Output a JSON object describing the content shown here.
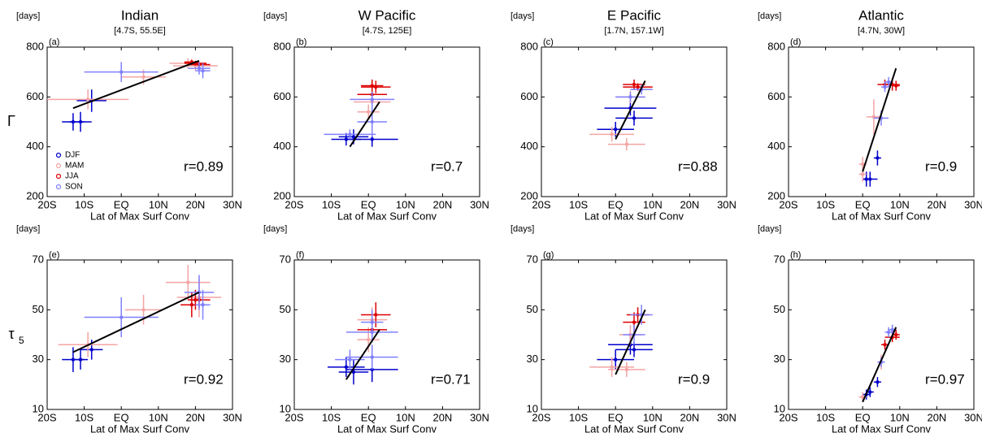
{
  "chart_data": [
    {
      "type": "scatter",
      "title": "Indian",
      "subtitle": "[4.7S, 55.5E]",
      "panel_label": "(a)",
      "y_units": "[days]",
      "ylabel": "Γ",
      "xlabel": "Lat of Max Surf Conv",
      "annotation": "r=0.89",
      "legend": "lower left",
      "xlim": [
        -20,
        30
      ],
      "xticks": [
        {
          "value": -20,
          "label": "20S"
        },
        {
          "value": -10,
          "label": "10S"
        },
        {
          "value": 0,
          "label": "EQ"
        },
        {
          "value": 10,
          "label": "10N"
        },
        {
          "value": 20,
          "label": "20N"
        },
        {
          "value": 30,
          "label": "30N"
        }
      ],
      "ylim": [
        200,
        800
      ],
      "yticks": [
        200,
        400,
        600,
        800
      ],
      "series": [
        {
          "name": "DJF",
          "color": "#0000cc",
          "x": [
            -13,
            -11,
            -8
          ],
          "values": [
            500,
            500,
            585
          ],
          "x_err": [
            3,
            3,
            4
          ],
          "y_err": [
            35,
            40,
            45
          ]
        },
        {
          "name": "MAM",
          "color": "#f4a4a4",
          "x": [
            -9,
            6,
            18,
            20
          ],
          "values": [
            590,
            680,
            735,
            725
          ],
          "x_err": [
            11,
            6,
            5,
            6
          ],
          "y_err": [
            40,
            30,
            20,
            20
          ]
        },
        {
          "name": "JJA",
          "color": "#dd0000",
          "x": [
            19,
            20,
            21
          ],
          "values": [
            740,
            735,
            730
          ],
          "x_err": [
            2,
            3,
            3
          ],
          "y_err": [
            10,
            10,
            10
          ]
        },
        {
          "name": "SON",
          "color": "#8080ff",
          "x": [
            0,
            21,
            22
          ],
          "values": [
            700,
            715,
            705
          ],
          "x_err": [
            10,
            3,
            2
          ],
          "y_err": [
            40,
            25,
            30
          ]
        }
      ],
      "fit_x": [
        -13,
        21
      ],
      "fit_y": [
        555,
        745
      ]
    },
    {
      "type": "scatter",
      "title": "W Pacific",
      "subtitle": "[4.7S, 125E]",
      "panel_label": "(b)",
      "y_units": "[days]",
      "xlabel": "Lat of Max Surf Conv",
      "annotation": "r=0.7",
      "xlim": [
        -20,
        30
      ],
      "xticks": [
        {
          "value": -20,
          "label": "20S"
        },
        {
          "value": -10,
          "label": "10S"
        },
        {
          "value": 0,
          "label": "EQ"
        },
        {
          "value": 10,
          "label": "10N"
        },
        {
          "value": 20,
          "label": "20N"
        },
        {
          "value": 30,
          "label": "30N"
        }
      ],
      "ylim": [
        200,
        800
      ],
      "yticks": [
        200,
        400,
        600,
        800
      ],
      "series": [
        {
          "color": "#0000cc",
          "x": [
            -4,
            -6,
            1
          ],
          "values": [
            440,
            430,
            430
          ],
          "x_err": [
            4,
            4,
            7
          ],
          "y_err": [
            30,
            25,
            30
          ]
        },
        {
          "color": "#f4a4a4",
          "x": [
            0,
            1
          ],
          "values": [
            540,
            580
          ],
          "x_err": [
            3,
            5
          ],
          "y_err": [
            30,
            40
          ]
        },
        {
          "color": "#dd0000",
          "x": [
            1,
            2,
            1
          ],
          "values": [
            645,
            640,
            610
          ],
          "x_err": [
            3,
            4,
            4
          ],
          "y_err": [
            25,
            25,
            20
          ]
        },
        {
          "color": "#8080ff",
          "x": [
            -5,
            1,
            1
          ],
          "values": [
            450,
            500,
            590
          ],
          "x_err": [
            7,
            4,
            6
          ],
          "y_err": [
            20,
            60,
            30
          ]
        }
      ],
      "fit_x": [
        -5,
        3
      ],
      "fit_y": [
        400,
        580
      ]
    },
    {
      "type": "scatter",
      "title": "E Pacific",
      "subtitle": "[1.7N, 157.1W]",
      "panel_label": "(c)",
      "y_units": "[days]",
      "xlabel": "Lat of Max Surf Conv",
      "annotation": "r=0.88",
      "xlim": [
        -20,
        30
      ],
      "xticks": [
        {
          "value": -20,
          "label": "20S"
        },
        {
          "value": -10,
          "label": "10S"
        },
        {
          "value": 0,
          "label": "EQ"
        },
        {
          "value": 10,
          "label": "10N"
        },
        {
          "value": 20,
          "label": "20N"
        },
        {
          "value": 30,
          "label": "30N"
        }
      ],
      "ylim": [
        200,
        800
      ],
      "yticks": [
        200,
        400,
        600,
        800
      ],
      "series": [
        {
          "color": "#0000cc",
          "x": [
            0,
            4,
            5
          ],
          "values": [
            470,
            555,
            515
          ],
          "x_err": [
            5,
            7,
            5
          ],
          "y_err": [
            30,
            30,
            30
          ]
        },
        {
          "color": "#f4a4a4",
          "x": [
            -1,
            3,
            4
          ],
          "values": [
            450,
            410,
            600
          ],
          "x_err": [
            6,
            5,
            4
          ],
          "y_err": [
            30,
            25,
            25
          ]
        },
        {
          "color": "#dd0000",
          "x": [
            5,
            6
          ],
          "values": [
            650,
            640
          ],
          "x_err": [
            3,
            4
          ],
          "y_err": [
            20,
            15
          ]
        },
        {
          "color": "#8080ff",
          "x": [
            4,
            7
          ],
          "values": [
            600,
            630
          ],
          "x_err": [
            4,
            3
          ],
          "y_err": [
            20,
            20
          ]
        }
      ],
      "fit_x": [
        0,
        8
      ],
      "fit_y": [
        430,
        665
      ]
    },
    {
      "type": "scatter",
      "title": "Atlantic",
      "subtitle": "[4.7N, 30W]",
      "panel_label": "(d)",
      "y_units": "[days]",
      "xlabel": "Lat of Max Surf Conv",
      "annotation": "r=0.9",
      "xlim": [
        -20,
        30
      ],
      "xticks": [
        {
          "value": -20,
          "label": "20S"
        },
        {
          "value": -10,
          "label": "10S"
        },
        {
          "value": 0,
          "label": "EQ"
        },
        {
          "value": 10,
          "label": "10N"
        },
        {
          "value": 20,
          "label": "20N"
        },
        {
          "value": 30,
          "label": "30N"
        }
      ],
      "ylim": [
        200,
        800
      ],
      "yticks": [
        200,
        400,
        600,
        800
      ],
      "series": [
        {
          "color": "#0000cc",
          "x": [
            1,
            2,
            4
          ],
          "values": [
            270,
            270,
            355
          ],
          "x_err": [
            1,
            2,
            1
          ],
          "y_err": [
            30,
            30,
            30
          ]
        },
        {
          "color": "#f4a4a4",
          "x": [
            0,
            0,
            3
          ],
          "values": [
            330,
            290,
            520
          ],
          "x_err": [
            1,
            1,
            2
          ],
          "y_err": [
            30,
            30,
            70
          ]
        },
        {
          "color": "#dd0000",
          "x": [
            6,
            8,
            9
          ],
          "values": [
            650,
            650,
            645
          ],
          "x_err": [
            2,
            2,
            1
          ],
          "y_err": [
            20,
            25,
            20
          ]
        },
        {
          "color": "#8080ff",
          "x": [
            5,
            6,
            7
          ],
          "values": [
            515,
            640,
            660
          ],
          "x_err": [
            2,
            1,
            1
          ],
          "y_err": [
            30,
            20,
            20
          ]
        }
      ],
      "fit_x": [
        0,
        9
      ],
      "fit_y": [
        300,
        715
      ]
    },
    {
      "type": "scatter",
      "panel_label": "(e)",
      "y_units": "[days]",
      "ylabel": "τ",
      "ylabel_subscript": "5",
      "xlabel": "Lat of Max Surf Conv",
      "annotation": "r=0.92",
      "xlim": [
        -20,
        30
      ],
      "xticks": [
        {
          "value": -20,
          "label": "20S"
        },
        {
          "value": -10,
          "label": "10S"
        },
        {
          "value": 0,
          "label": "EQ"
        },
        {
          "value": 10,
          "label": "10N"
        },
        {
          "value": 20,
          "label": "20N"
        },
        {
          "value": 30,
          "label": "30N"
        }
      ],
      "ylim": [
        10,
        70
      ],
      "yticks": [
        10,
        30,
        50,
        70
      ],
      "series": [
        {
          "color": "#0000cc",
          "x": [
            -13,
            -11,
            -8
          ],
          "values": [
            30,
            30,
            34
          ],
          "x_err": [
            3,
            2,
            3
          ],
          "y_err": [
            5,
            4,
            4
          ]
        },
        {
          "color": "#f4a4a4",
          "x": [
            -9,
            6,
            18,
            21
          ],
          "values": [
            36,
            50,
            61,
            55
          ],
          "x_err": [
            8,
            5,
            6,
            6
          ],
          "y_err": [
            5,
            6,
            7,
            8
          ]
        },
        {
          "color": "#dd0000",
          "x": [
            19,
            20,
            21
          ],
          "values": [
            52,
            54,
            54
          ],
          "x_err": [
            3,
            2,
            3
          ],
          "y_err": [
            5,
            4,
            3
          ]
        },
        {
          "color": "#8080ff",
          "x": [
            0,
            21,
            22
          ],
          "values": [
            47,
            57,
            52
          ],
          "x_err": [
            10,
            4,
            2
          ],
          "y_err": [
            8,
            7,
            6
          ]
        }
      ],
      "fit_x": [
        -13,
        21
      ],
      "fit_y": [
        33,
        57
      ]
    },
    {
      "type": "scatter",
      "panel_label": "(f)",
      "y_units": "[days]",
      "xlabel": "Lat of Max Surf Conv",
      "annotation": "r=0.71",
      "xlim": [
        -20,
        30
      ],
      "xticks": [
        {
          "value": -20,
          "label": "20S"
        },
        {
          "value": -10,
          "label": "10S"
        },
        {
          "value": 0,
          "label": "EQ"
        },
        {
          "value": 10,
          "label": "10N"
        },
        {
          "value": 20,
          "label": "20N"
        },
        {
          "value": 30,
          "label": "30N"
        }
      ],
      "ylim": [
        10,
        70
      ],
      "yticks": [
        10,
        30,
        50,
        70
      ],
      "series": [
        {
          "color": "#0000cc",
          "x": [
            -4,
            1,
            -6
          ],
          "values": [
            25,
            26,
            27
          ],
          "x_err": [
            4,
            7,
            5
          ],
          "y_err": [
            5,
            5,
            4
          ]
        },
        {
          "color": "#f4a4a4",
          "x": [
            0,
            1
          ],
          "values": [
            38,
            46
          ],
          "x_err": [
            3,
            4
          ],
          "y_err": [
            5,
            5
          ]
        },
        {
          "color": "#dd0000",
          "x": [
            2,
            1
          ],
          "values": [
            48,
            42
          ],
          "x_err": [
            4,
            4
          ],
          "y_err": [
            5,
            5
          ]
        },
        {
          "color": "#8080ff",
          "x": [
            -5,
            1,
            1,
            1
          ],
          "values": [
            30,
            31,
            41,
            45
          ],
          "x_err": [
            4,
            7,
            7,
            3
          ],
          "y_err": [
            4,
            5,
            4,
            5
          ]
        }
      ],
      "fit_x": [
        -6,
        3
      ],
      "fit_y": [
        22,
        42
      ]
    },
    {
      "type": "scatter",
      "panel_label": "(g)",
      "y_units": "[days]",
      "xlabel": "Lat of Max Surf Conv",
      "annotation": "r=0.9",
      "xlim": [
        -20,
        30
      ],
      "xticks": [
        {
          "value": -20,
          "label": "20S"
        },
        {
          "value": -10,
          "label": "10S"
        },
        {
          "value": 0,
          "label": "EQ"
        },
        {
          "value": 10,
          "label": "10N"
        },
        {
          "value": 20,
          "label": "20N"
        },
        {
          "value": 30,
          "label": "30N"
        }
      ],
      "ylim": [
        10,
        70
      ],
      "yticks": [
        10,
        30,
        50,
        70
      ],
      "series": [
        {
          "color": "#0000cc",
          "x": [
            0,
            4,
            5
          ],
          "values": [
            30,
            36,
            34
          ],
          "x_err": [
            5,
            6,
            5
          ],
          "y_err": [
            4,
            4,
            3
          ]
        },
        {
          "color": "#f4a4a4",
          "x": [
            -1,
            3,
            4
          ],
          "values": [
            27,
            26,
            40
          ],
          "x_err": [
            6,
            5,
            3
          ],
          "y_err": [
            4,
            3,
            4
          ]
        },
        {
          "color": "#dd0000",
          "x": [
            5,
            6
          ],
          "values": [
            45,
            48
          ],
          "x_err": [
            3,
            3
          ],
          "y_err": [
            4,
            3
          ]
        },
        {
          "color": "#8080ff",
          "x": [
            5,
            7
          ],
          "values": [
            40,
            48
          ],
          "x_err": [
            3,
            3
          ],
          "y_err": [
            4,
            4
          ]
        }
      ],
      "fit_x": [
        0,
        8
      ],
      "fit_y": [
        24,
        50
      ]
    },
    {
      "type": "scatter",
      "panel_label": "(h)",
      "y_units": "[days]",
      "xlabel": "Lat of Max Surf Conv",
      "annotation": "r=0.97",
      "xlim": [
        -20,
        30
      ],
      "xticks": [
        {
          "value": -20,
          "label": "20S"
        },
        {
          "value": -10,
          "label": "10S"
        },
        {
          "value": 0,
          "label": "EQ"
        },
        {
          "value": 10,
          "label": "10N"
        },
        {
          "value": 20,
          "label": "20N"
        },
        {
          "value": 30,
          "label": "30N"
        }
      ],
      "ylim": [
        10,
        70
      ],
      "yticks": [
        10,
        30,
        50,
        70
      ],
      "series": [
        {
          "color": "#0000cc",
          "x": [
            1,
            2,
            4
          ],
          "values": [
            16,
            17,
            21
          ],
          "x_err": [
            1,
            1,
            1
          ],
          "y_err": [
            2,
            2,
            2
          ]
        },
        {
          "color": "#f4a4a4",
          "x": [
            0,
            0,
            5
          ],
          "values": [
            15,
            15,
            29
          ],
          "x_err": [
            1,
            1,
            1
          ],
          "y_err": [
            2,
            2,
            3
          ]
        },
        {
          "color": "#dd0000",
          "x": [
            6,
            8,
            9
          ],
          "values": [
            36,
            39,
            40
          ],
          "x_err": [
            1,
            2,
            1
          ],
          "y_err": [
            2,
            2,
            2
          ]
        },
        {
          "color": "#8080ff",
          "x": [
            5,
            7,
            8
          ],
          "values": [
            29,
            41,
            42
          ],
          "x_err": [
            1,
            1,
            1
          ],
          "y_err": [
            2,
            2,
            2
          ]
        }
      ],
      "fit_x": [
        0,
        9
      ],
      "fit_y": [
        13,
        43
      ]
    }
  ]
}
